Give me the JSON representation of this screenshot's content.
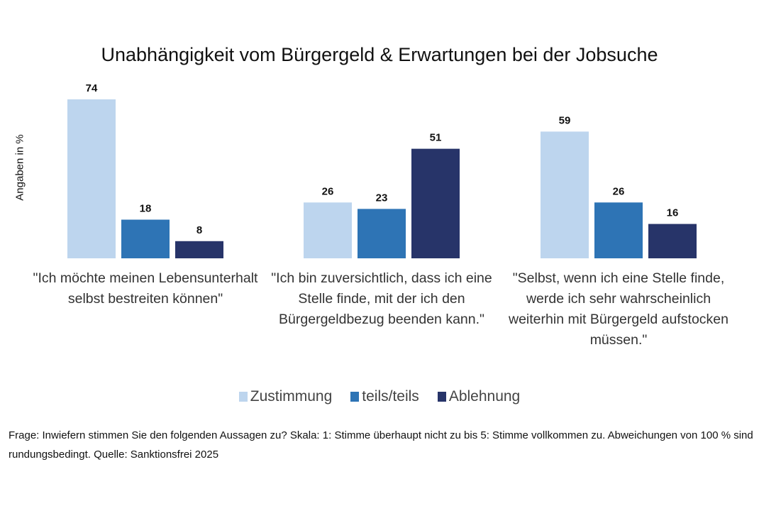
{
  "chart_data": {
    "type": "bar",
    "title": "Unabhängigkeit vom Bürgergeld & Erwartungen bei der Jobsuche",
    "ylabel": "Angaben in %",
    "xlabel": "",
    "ylim": [
      0,
      80
    ],
    "grid": false,
    "legend_position": "bottom",
    "categories": [
      "\"Ich möchte meinen Lebensunterhalt selbst bestreiten können\"",
      "\"Ich bin zuversichtlich, dass ich eine Stelle finde, mit der ich den Bürgergeldbezug beenden kann.\"",
      "\"Selbst, wenn ich eine Stelle finde, werde ich sehr wahrscheinlich weiterhin mit Bürgergeld aufstocken müssen.\""
    ],
    "series": [
      {
        "name": "Zustimmung",
        "color": "#bdd5ee",
        "values": [
          74,
          26,
          59
        ]
      },
      {
        "name": "teils/teils",
        "color": "#2e74b5",
        "values": [
          18,
          23,
          26
        ]
      },
      {
        "name": "Ablehnung",
        "color": "#273469",
        "values": [
          8,
          51,
          16
        ]
      }
    ]
  },
  "footnote": "Frage: Inwiefern stimmen Sie den folgenden Aussagen zu? Skala: 1: Stimme überhaupt nicht zu bis 5: Stimme vollkommen zu. Abweichungen von 100 % sind rundungsbedingt. Quelle: Sanktionsfrei 2025"
}
